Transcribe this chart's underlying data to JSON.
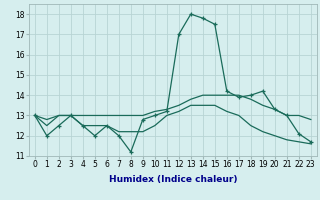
{
  "title": "",
  "xlabel": "Humidex (Indice chaleur)",
  "ylabel": "",
  "background_color": "#d6eeee",
  "grid_color": "#b8d4d4",
  "line_color": "#1a6b5a",
  "x": [
    0,
    1,
    2,
    3,
    4,
    5,
    6,
    7,
    8,
    9,
    10,
    11,
    12,
    13,
    14,
    15,
    16,
    17,
    18,
    19,
    20,
    21,
    22,
    23
  ],
  "line1": [
    13,
    12,
    12.5,
    13,
    12.5,
    12,
    12.5,
    12,
    11.2,
    12.8,
    13,
    13.2,
    17,
    18,
    17.8,
    17.5,
    14.2,
    13.9,
    14.0,
    14.2,
    13.3,
    13.0,
    12.1,
    11.7
  ],
  "line2": [
    13,
    12.5,
    13,
    13,
    12.5,
    12.5,
    12.5,
    12.2,
    12.2,
    12.2,
    12.5,
    13.0,
    13.2,
    13.5,
    13.5,
    13.5,
    13.2,
    13.0,
    12.5,
    12.2,
    12.0,
    11.8,
    11.7,
    11.6
  ],
  "line3": [
    13,
    12.8,
    13.0,
    13.0,
    13.0,
    13.0,
    13.0,
    13.0,
    13.0,
    13.0,
    13.2,
    13.3,
    13.5,
    13.8,
    14.0,
    14.0,
    14.0,
    14.0,
    13.8,
    13.5,
    13.3,
    13.0,
    13.0,
    12.8
  ],
  "ylim": [
    11,
    18.5
  ],
  "yticks": [
    11,
    12,
    13,
    14,
    15,
    16,
    17,
    18
  ],
  "xlabel_color": "#00008b",
  "xlabel_fontsize": 6.5,
  "tick_fontsize": 5.5
}
